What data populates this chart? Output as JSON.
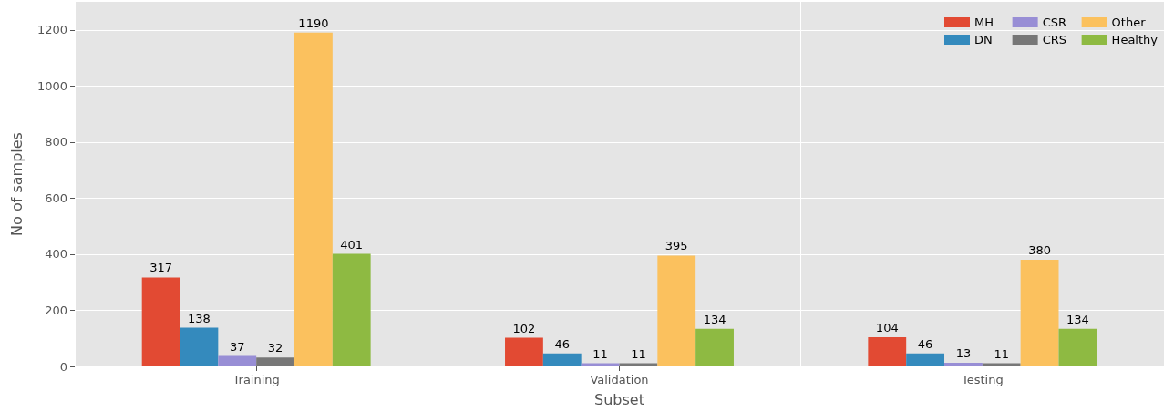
{
  "chart_data": {
    "type": "bar",
    "xlabel": "Subset",
    "ylabel": "No of samples",
    "categories": [
      "Training",
      "Validation",
      "Testing"
    ],
    "series": [
      {
        "name": "MH",
        "color": "#e24a33",
        "values": [
          317,
          102,
          104
        ]
      },
      {
        "name": "DN",
        "color": "#348abd",
        "values": [
          138,
          46,
          46
        ]
      },
      {
        "name": "CSR",
        "color": "#988ed5",
        "values": [
          37,
          11,
          13
        ]
      },
      {
        "name": "CRS",
        "color": "#777777",
        "values": [
          32,
          11,
          11
        ]
      },
      {
        "name": "Other",
        "color": "#fbc15e",
        "values": [
          1190,
          395,
          380
        ]
      },
      {
        "name": "Healthy",
        "color": "#8eba42",
        "values": [
          401,
          134,
          134
        ]
      }
    ],
    "ylim": [
      0,
      1300
    ],
    "yticks": [
      0,
      200,
      400,
      600,
      800,
      1000,
      1200
    ],
    "grid": true,
    "legend": "top right",
    "data_labels": true
  }
}
